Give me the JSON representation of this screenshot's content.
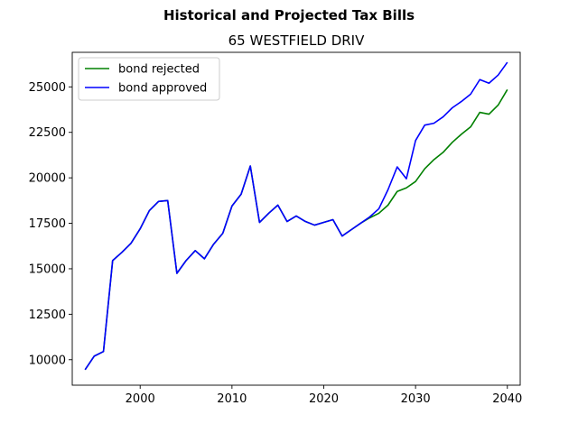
{
  "chart_data": {
    "type": "line",
    "title": "Historical and Projected Tax Bills",
    "subtitle": "65 WESTFIELD DRIV",
    "xlabel": "",
    "ylabel": "",
    "xlim": [
      1992.6,
      2041.4
    ],
    "ylim": [
      8600,
      26900
    ],
    "x_ticks": [
      2000,
      2010,
      2020,
      2030,
      2040
    ],
    "y_ticks": [
      10000,
      12500,
      15000,
      17500,
      20000,
      22500,
      25000
    ],
    "grid": false,
    "legend_position": "top-left",
    "series": [
      {
        "name": "bond rejected",
        "color": "#008000",
        "x": [
          1994,
          1995,
          1996,
          1997,
          1998,
          1999,
          2000,
          2001,
          2002,
          2003,
          2004,
          2005,
          2006,
          2007,
          2008,
          2009,
          2010,
          2011,
          2012,
          2013,
          2014,
          2015,
          2016,
          2017,
          2018,
          2019,
          2020,
          2021,
          2022,
          2023,
          2024,
          2025,
          2026,
          2027,
          2028,
          2029,
          2030,
          2031,
          2032,
          2033,
          2034,
          2035,
          2036,
          2037,
          2038,
          2039,
          2040
        ],
        "values": [
          9450,
          10200,
          10450,
          15450,
          15900,
          16400,
          17200,
          18200,
          18700,
          18750,
          14750,
          15450,
          16000,
          15550,
          16350,
          16950,
          18450,
          19100,
          20650,
          17550,
          18050,
          18500,
          17600,
          17900,
          17600,
          17400,
          17550,
          17700,
          16800,
          17150,
          17500,
          17800,
          18050,
          18500,
          19250,
          19450,
          19800,
          20500,
          21000,
          21400,
          21950,
          22400,
          22800,
          23600,
          23500,
          24000,
          24850
        ]
      },
      {
        "name": "bond approved",
        "color": "#0000ff",
        "x": [
          1994,
          1995,
          1996,
          1997,
          1998,
          1999,
          2000,
          2001,
          2002,
          2003,
          2004,
          2005,
          2006,
          2007,
          2008,
          2009,
          2010,
          2011,
          2012,
          2013,
          2014,
          2015,
          2016,
          2017,
          2018,
          2019,
          2020,
          2021,
          2022,
          2023,
          2024,
          2025,
          2026,
          2027,
          2028,
          2029,
          2030,
          2031,
          2032,
          2033,
          2034,
          2035,
          2036,
          2037,
          2038,
          2039,
          2040
        ],
        "values": [
          9450,
          10200,
          10450,
          15450,
          15900,
          16400,
          17200,
          18200,
          18700,
          18750,
          14750,
          15450,
          16000,
          15550,
          16350,
          16950,
          18450,
          19100,
          20650,
          17550,
          18050,
          18500,
          17600,
          17900,
          17600,
          17400,
          17550,
          17700,
          16800,
          17150,
          17500,
          17850,
          18300,
          19350,
          20600,
          19950,
          22050,
          22900,
          23000,
          23350,
          23850,
          24200,
          24600,
          25400,
          25200,
          25650,
          26350
        ]
      }
    ]
  }
}
